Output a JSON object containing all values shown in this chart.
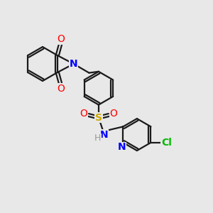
{
  "background_color": "#e8e8e8",
  "bond_color": "#1a1a1a",
  "nitrogen_color": "#0000ff",
  "oxygen_color": "#ff0000",
  "chlorine_color": "#00bb00",
  "sulfur_color": "#ccaa00",
  "hydrogen_color": "#999999",
  "line_width": 1.6,
  "fig_size": [
    3.0,
    3.0
  ],
  "dpi": 100,
  "xlim": [
    0,
    10
  ],
  "ylim": [
    0,
    10
  ]
}
